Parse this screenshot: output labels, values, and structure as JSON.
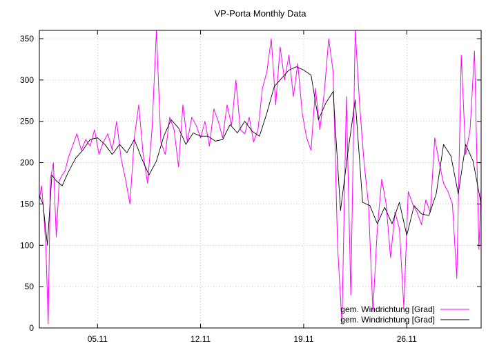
{
  "chart_data": {
    "type": "line",
    "title": "VP-Porta Monthly Data",
    "xlabel": "",
    "ylabel": "",
    "grid": true,
    "legend_position": "bottom-right",
    "xlim": [
      1.05,
      31.05
    ],
    "ylim": [
      0,
      360
    ],
    "x_ticks": [
      {
        "value": 5,
        "label": "05.11"
      },
      {
        "value": 12,
        "label": "12.11"
      },
      {
        "value": 19,
        "label": "19.11"
      },
      {
        "value": 26,
        "label": "26.11"
      }
    ],
    "y_ticks": [
      0,
      50,
      100,
      150,
      200,
      250,
      300,
      350
    ],
    "series": [
      {
        "name": "gem. Windrichtung [Grad]",
        "color": "#ff00ff",
        "style": "raw",
        "x": [
          1.05,
          1.2,
          1.35,
          1.5,
          1.65,
          1.8,
          2.0,
          2.2,
          2.4,
          2.6,
          2.8,
          3.0,
          3.3,
          3.6,
          3.9,
          4.2,
          4.5,
          4.8,
          5.1,
          5.4,
          5.7,
          6.0,
          6.3,
          6.6,
          6.9,
          7.2,
          7.5,
          7.8,
          8.1,
          8.4,
          8.7,
          9.0,
          9.3,
          9.6,
          9.9,
          10.2,
          10.5,
          10.8,
          11.1,
          11.4,
          11.7,
          12.0,
          12.3,
          12.6,
          12.9,
          13.2,
          13.5,
          13.8,
          14.1,
          14.4,
          14.7,
          15.0,
          15.3,
          15.6,
          15.9,
          16.2,
          16.5,
          16.8,
          17.1,
          17.4,
          17.7,
          18.0,
          18.3,
          18.6,
          18.9,
          19.2,
          19.5,
          19.8,
          20.1,
          20.4,
          20.7,
          21.0,
          21.3,
          21.6,
          21.9,
          22.2,
          22.5,
          22.8,
          23.1,
          23.4,
          23.7,
          24.0,
          24.3,
          24.6,
          24.9,
          25.2,
          25.5,
          25.8,
          26.1,
          26.4,
          26.7,
          27.0,
          27.3,
          27.6,
          27.9,
          28.2,
          28.5,
          28.8,
          29.1,
          29.4,
          29.7,
          30.0,
          30.3,
          30.6,
          30.9,
          31.05
        ],
        "y": [
          155,
          172,
          140,
          95,
          5,
          180,
          200,
          110,
          178,
          185,
          190,
          205,
          220,
          235,
          215,
          228,
          220,
          240,
          210,
          225,
          235,
          215,
          250,
          205,
          180,
          150,
          230,
          270,
          210,
          175,
          240,
          360,
          225,
          210,
          255,
          240,
          195,
          270,
          225,
          255,
          245,
          230,
          250,
          220,
          265,
          250,
          230,
          270,
          245,
          300,
          240,
          235,
          255,
          225,
          240,
          290,
          310,
          350,
          270,
          340,
          300,
          330,
          280,
          320,
          260,
          230,
          215,
          290,
          240,
          285,
          350,
          310,
          100,
          5,
          280,
          40,
          360,
          270,
          200,
          150,
          20,
          120,
          180,
          150,
          85,
          140,
          120,
          25,
          165,
          150,
          140,
          125,
          155,
          140,
          230,
          200,
          175,
          165,
          150,
          60,
          330,
          210,
          240,
          335,
          95,
          170
        ]
      },
      {
        "name": "gem. Windrichtung [Grad]",
        "color": "#000000",
        "style": "smooth",
        "x": [
          1.05,
          1.3,
          1.6,
          1.9,
          2.2,
          2.6,
          3.0,
          3.5,
          4.0,
          4.5,
          5.0,
          5.5,
          6.0,
          6.5,
          7.0,
          7.5,
          8.0,
          8.5,
          9.0,
          9.5,
          10.0,
          10.5,
          11.0,
          11.5,
          12.0,
          12.5,
          13.0,
          13.5,
          14.0,
          14.5,
          15.0,
          15.5,
          16.0,
          16.5,
          17.0,
          17.5,
          18.0,
          18.5,
          19.0,
          19.5,
          20.0,
          20.5,
          21.0,
          21.5,
          22.0,
          22.5,
          23.0,
          23.5,
          24.0,
          24.5,
          25.0,
          25.5,
          26.0,
          26.5,
          27.0,
          27.5,
          28.0,
          28.5,
          29.0,
          29.5,
          30.0,
          30.5,
          31.05
        ],
        "y": [
          160,
          150,
          100,
          185,
          178,
          172,
          188,
          205,
          215,
          228,
          230,
          222,
          210,
          222,
          212,
          228,
          205,
          185,
          202,
          232,
          252,
          242,
          222,
          236,
          232,
          232,
          226,
          228,
          246,
          236,
          250,
          238,
          232,
          260,
          292,
          302,
          312,
          316,
          312,
          306,
          252,
          272,
          286,
          142,
          212,
          276,
          152,
          148,
          126,
          146,
          126,
          152,
          112,
          148,
          138,
          136,
          162,
          222,
          208,
          162,
          222,
          202,
          150
        ]
      }
    ]
  }
}
